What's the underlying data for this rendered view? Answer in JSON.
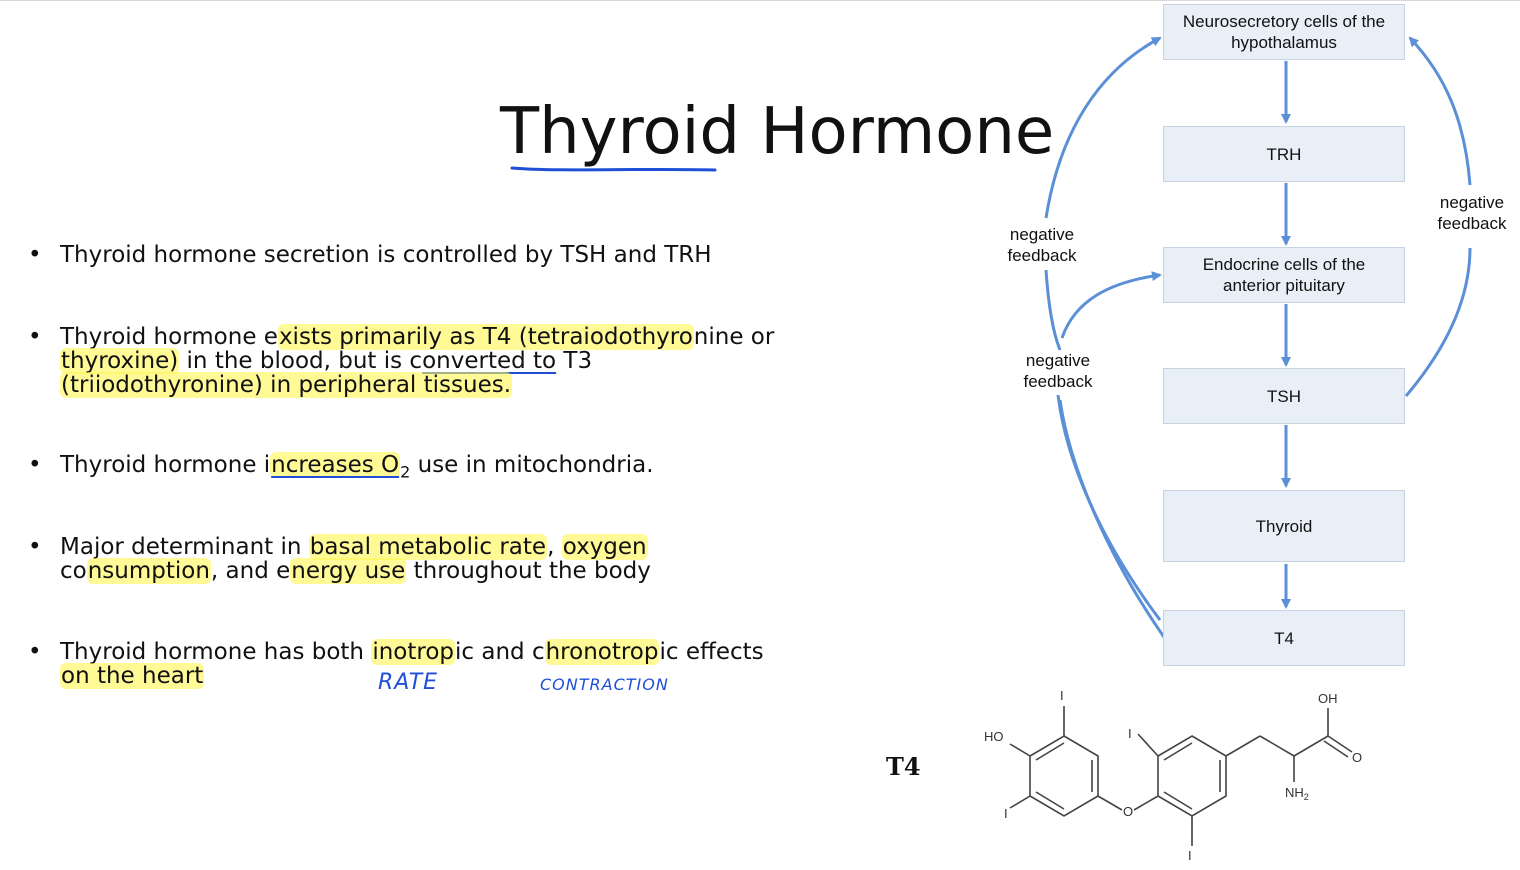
{
  "slide": {
    "title": "Thyroid Hormone"
  },
  "bullets": [
    {
      "bullet": "•",
      "parts": [
        {
          "text": "Thyroid hormone secretion is controlled by TSH and TRH",
          "style": "plain"
        }
      ]
    },
    {
      "bullet": "•",
      "parts": [
        {
          "text": "Thyroid hormone e",
          "style": "plain"
        },
        {
          "text": "xists primarily as T4 (tetraiodothyro",
          "style": "highlight"
        },
        {
          "text": "nine or",
          "style": "plain"
        },
        {
          "text": "\n",
          "style": "break"
        },
        {
          "text": "thyroxine)",
          "style": "highlight"
        },
        {
          "text": " in the blood, but is c",
          "style": "plain"
        },
        {
          "text": "onverted to",
          "style": "underline"
        },
        {
          "text": " T3",
          "style": "plain"
        },
        {
          "text": "\n",
          "style": "break"
        },
        {
          "text": "(triiodothyronine) in peripheral tissues.",
          "style": "highlight"
        }
      ]
    },
    {
      "bullet": "•",
      "parts": [
        {
          "text": "Thyroid hormone i",
          "style": "plain"
        },
        {
          "text": "ncreases O",
          "style": "highlight-underline"
        },
        {
          "text": "2",
          "style": "sub"
        },
        {
          "text": " use in mitochondria.",
          "style": "plain"
        }
      ]
    },
    {
      "bullet": "•",
      "parts": [
        {
          "text": "Major determinant in ",
          "style": "plain"
        },
        {
          "text": "basal metabolic rate",
          "style": "highlight"
        },
        {
          "text": ", ",
          "style": "plain"
        },
        {
          "text": "oxygen",
          "style": "highlight"
        },
        {
          "text": "\n",
          "style": "break"
        },
        {
          "text": "co",
          "style": "plain"
        },
        {
          "text": "nsumption",
          "style": "highlight"
        },
        {
          "text": ", and e",
          "style": "plain"
        },
        {
          "text": "nergy use",
          "style": "highlight"
        },
        {
          "text": " throughout the body",
          "style": "plain"
        }
      ]
    },
    {
      "bullet": "•",
      "parts": [
        {
          "text": "Thyroid hormone has both ",
          "style": "plain"
        },
        {
          "text": "inotrop",
          "style": "highlight"
        },
        {
          "text": "ic and c",
          "style": "plain"
        },
        {
          "text": "hronotrop",
          "style": "highlight"
        },
        {
          "text": "ic effects",
          "style": "plain"
        },
        {
          "text": "\n",
          "style": "break"
        },
        {
          "text": "on the heart",
          "style": "highlight"
        }
      ]
    }
  ],
  "handwriting": {
    "note1": "RATE",
    "note2": "CONTRACTION"
  },
  "flowchart": {
    "boxes": {
      "hypothalamus": [
        "Neurosecretory cells of the",
        "hypothalamus"
      ],
      "trh": "TRH",
      "pituitary": [
        "Endocrine cells of the",
        "anterior pituitary"
      ],
      "tsh": "TSH",
      "thyroid": "Thyroid",
      "t4": "T4"
    },
    "feedback_left_top": [
      "negative",
      "feedback"
    ],
    "feedback_left_mid": [
      "negative",
      "feedback"
    ],
    "feedback_right": [
      "negative",
      "feedback"
    ]
  },
  "molecule": {
    "label": "T4",
    "atoms": {
      "ho": "HO",
      "oh": "OH",
      "o_ether": "O",
      "o_carbonyl": "O",
      "nh2": "NH",
      "nh2_sub": "2",
      "iodine": "I"
    }
  },
  "colors": {
    "highlight": "#fff550",
    "pen": "#1f4fd6",
    "arrow": "#5b8fd6",
    "box_fill": "#e9eff7"
  }
}
